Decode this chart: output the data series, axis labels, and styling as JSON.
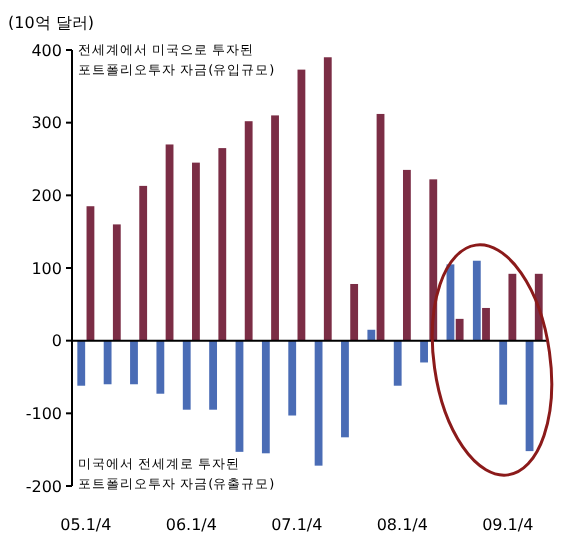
{
  "chart_data": {
    "type": "bar",
    "ylabel": "(10억 달러)",
    "categories": [
      "05.1/4",
      null,
      null,
      null,
      "06.1/4",
      null,
      null,
      null,
      "07.1/4",
      null,
      null,
      null,
      "08.1/4",
      null,
      null,
      null,
      "09.1/4",
      null
    ],
    "series": [
      {
        "color": "#4a6cb5",
        "values": [
          -62,
          -60,
          -60,
          -73,
          -95,
          -95,
          -153,
          -155,
          -103,
          -172,
          -133,
          15,
          -62,
          -30,
          105,
          110,
          -88,
          -152
        ]
      },
      {
        "color": "#7b2d45",
        "values": [
          185,
          160,
          213,
          270,
          245,
          265,
          302,
          310,
          373,
          390,
          78,
          312,
          235,
          222,
          30,
          45,
          92,
          92
        ]
      }
    ],
    "ylim": [
      -200,
      400
    ],
    "yticks": [
      -200,
      -100,
      0,
      100,
      200,
      300,
      400
    ],
    "annotations": [
      "전세계에서 미국으로 투자된\n포트폴리오투자 자금(유입규모)",
      "미국에서 전세계로 투자된\n포트폴리오투자 자금(유출규모)"
    ]
  }
}
